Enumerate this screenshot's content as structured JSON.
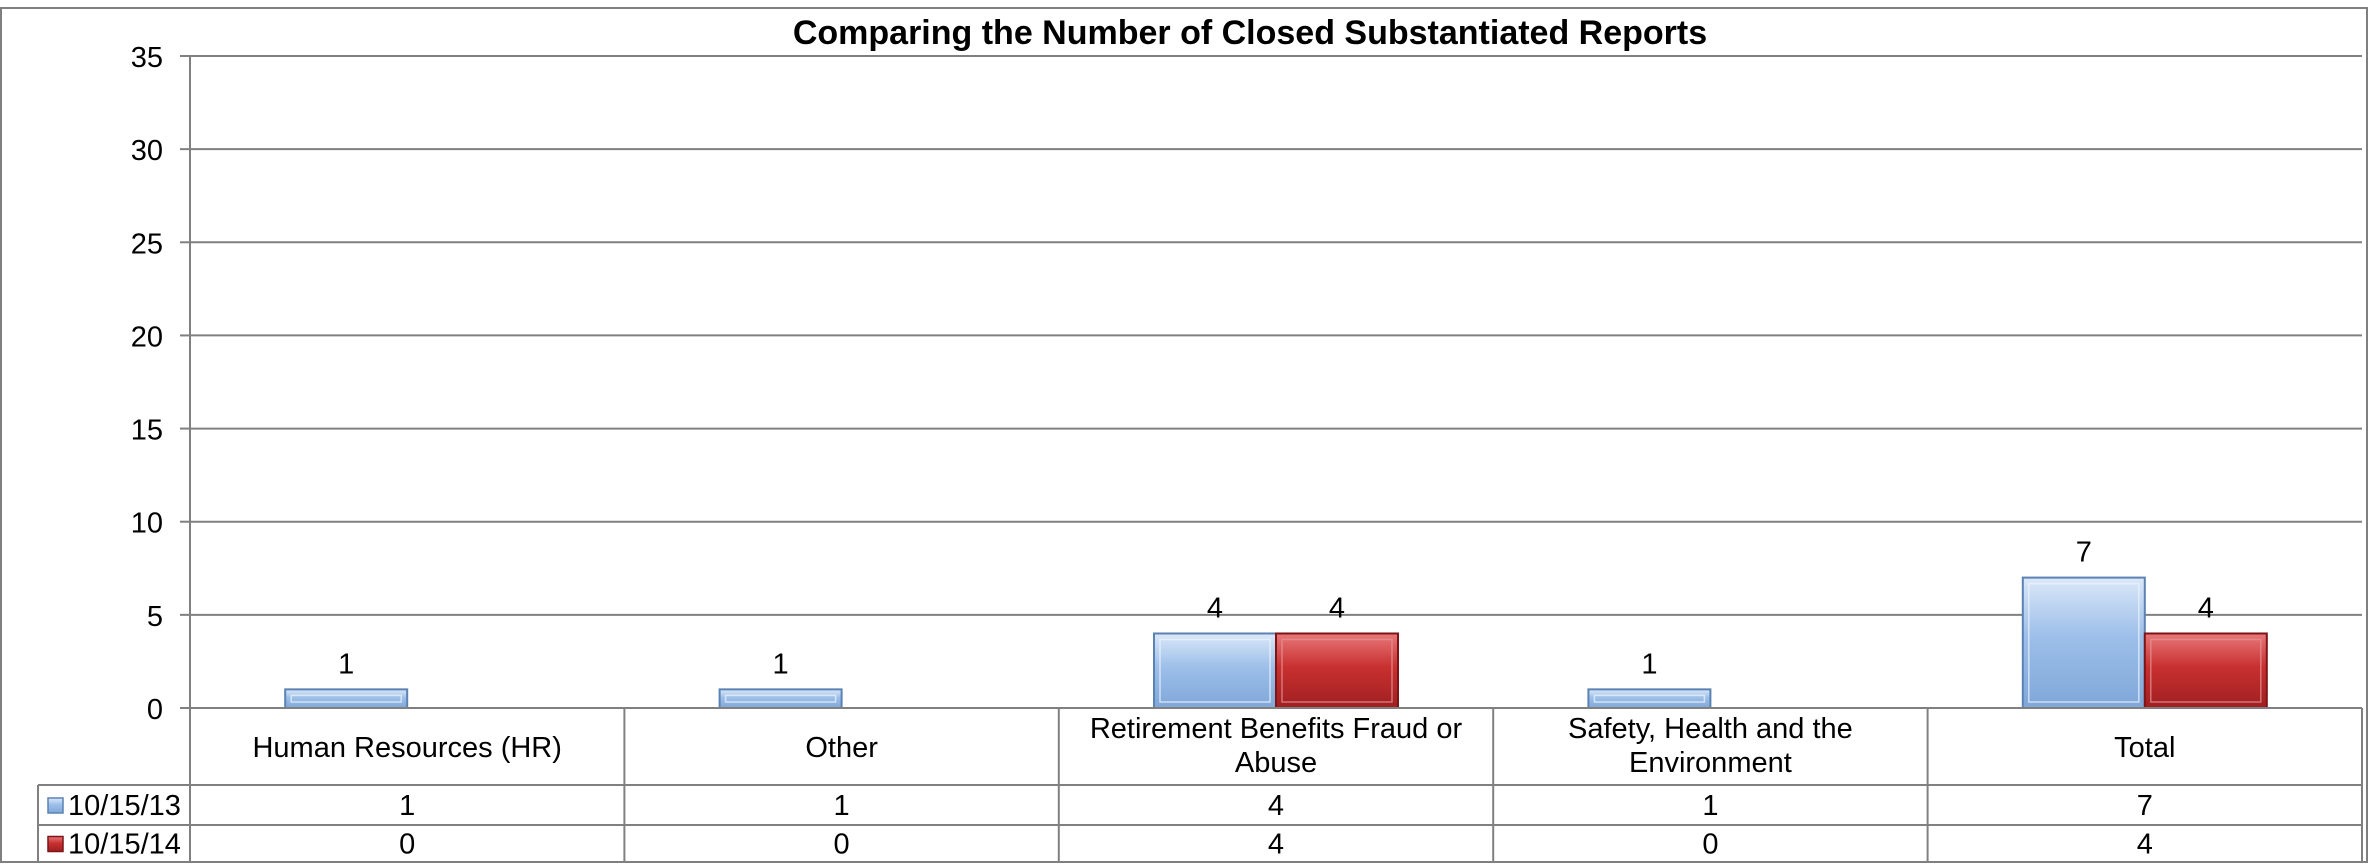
{
  "chart_data": {
    "type": "bar",
    "title": "Comparing the Number of  Closed Substantiated Reports",
    "categories": [
      [
        "Human Resources (HR)"
      ],
      [
        "Other"
      ],
      [
        "Retirement Benefits Fraud or",
        "Abuse"
      ],
      [
        "Safety, Health and the",
        "Environment"
      ],
      [
        "Total"
      ]
    ],
    "series": [
      {
        "name": "10/15/13",
        "values": [
          1,
          1,
          4,
          1,
          7
        ],
        "color": "#8DB3E2"
      },
      {
        "name": "10/15/14",
        "values": [
          0,
          0,
          4,
          0,
          4
        ],
        "color": "#C0282D"
      }
    ],
    "ylim": [
      0,
      35
    ],
    "yticks": [
      0,
      5,
      10,
      15,
      20,
      25,
      30,
      35
    ],
    "grid": true,
    "legend": "data-table"
  }
}
